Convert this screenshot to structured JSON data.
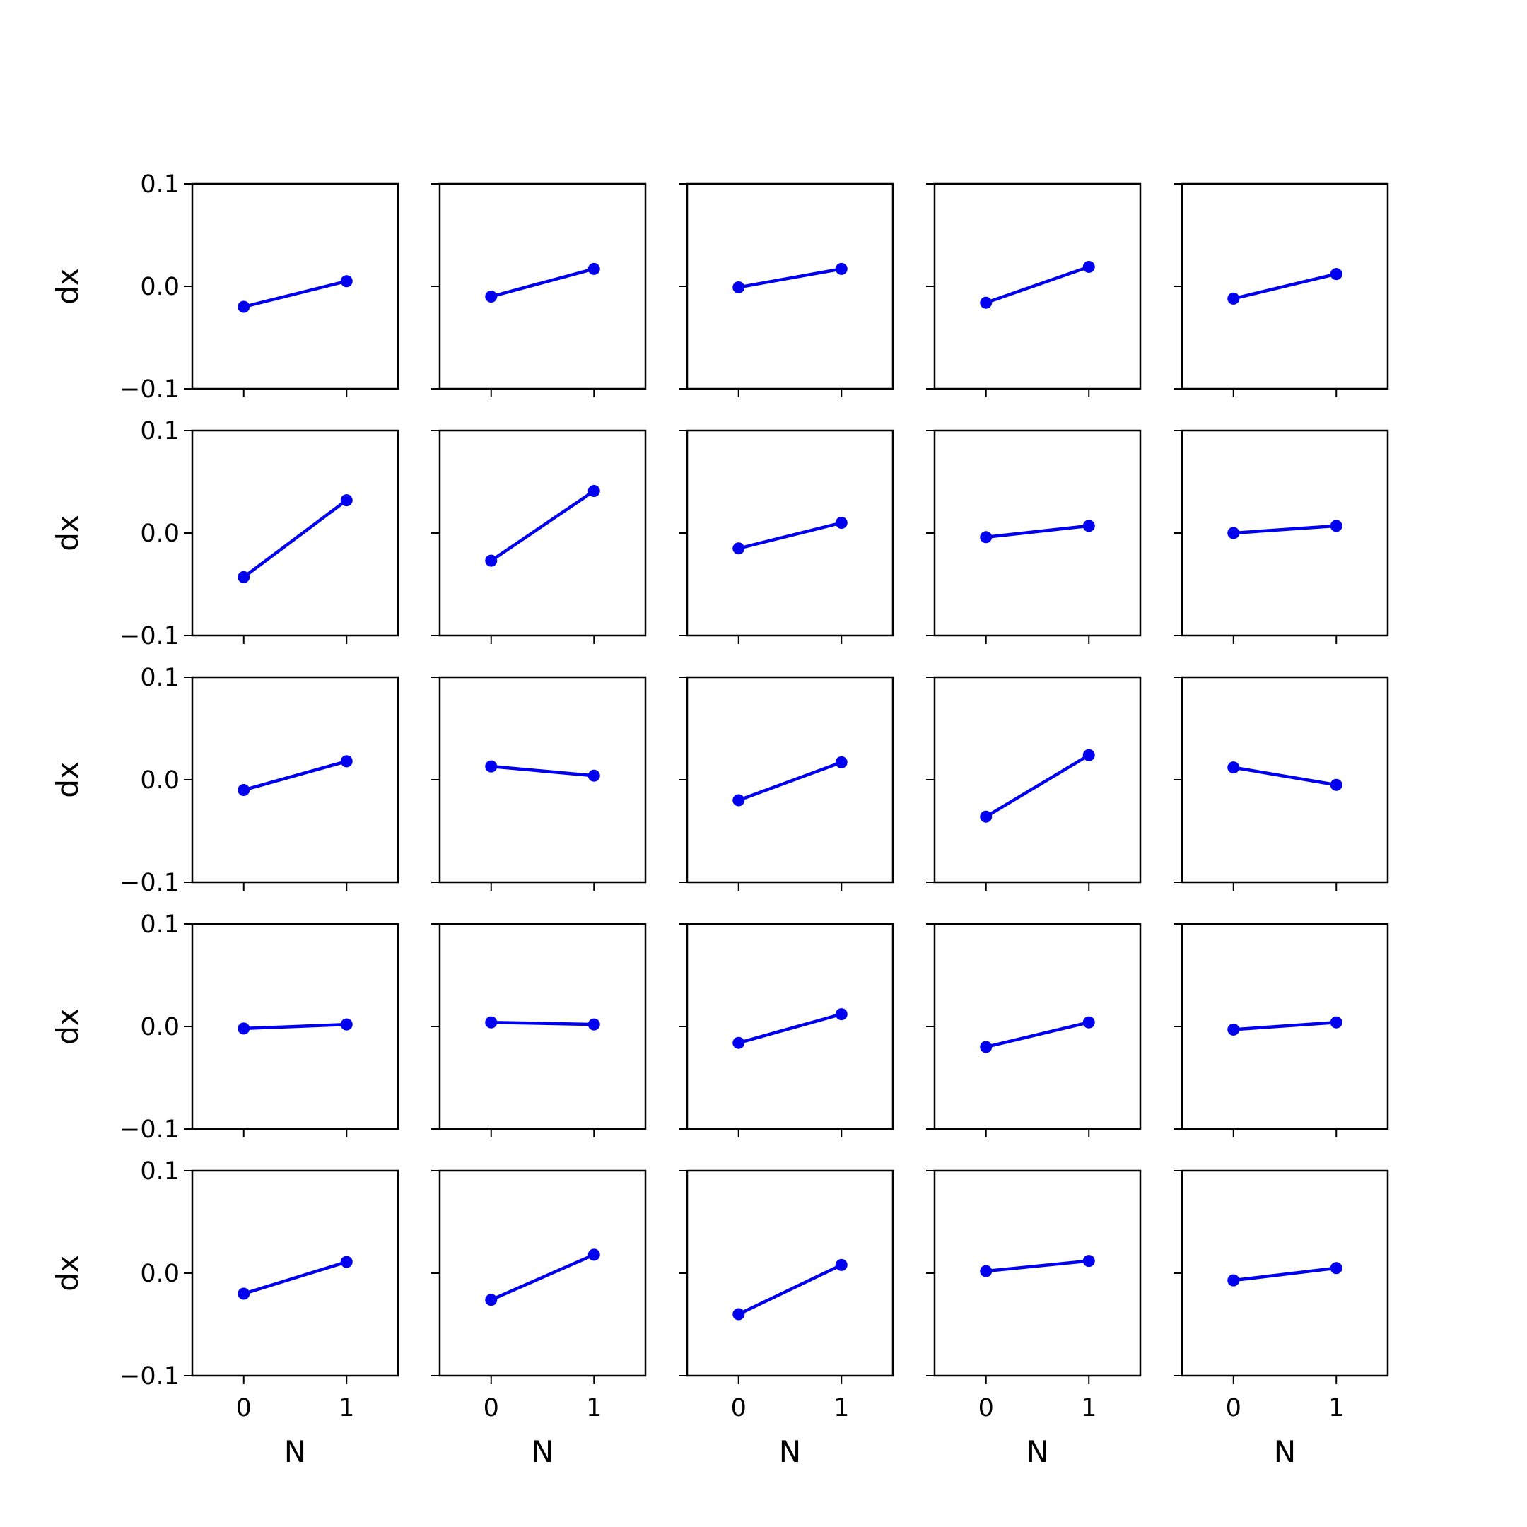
{
  "chart_data": {
    "type": "line",
    "layout": "5x5 grid of small multiples with shared axes",
    "xlabel": "N",
    "ylabel": "dx",
    "xticks": [
      "0",
      "1"
    ],
    "yticks": [
      "−0.1",
      "0.0",
      "0.1"
    ],
    "ytick_values": [
      -0.1,
      0.0,
      0.1
    ],
    "xtick_values": [
      0,
      1
    ],
    "xlim": [
      -0.5,
      1.5
    ],
    "ylim": [
      -0.1,
      0.1
    ],
    "grid": false,
    "legend": "none",
    "colors": {
      "series": "#0000ee",
      "axes": "#000000",
      "background": "#ffffff"
    },
    "panels": [
      [
        {
          "x": [
            0,
            1
          ],
          "y": [
            -0.02,
            0.005
          ]
        },
        {
          "x": [
            0,
            1
          ],
          "y": [
            -0.01,
            0.017
          ]
        },
        {
          "x": [
            0,
            1
          ],
          "y": [
            -0.001,
            0.017
          ]
        },
        {
          "x": [
            0,
            1
          ],
          "y": [
            -0.016,
            0.019
          ]
        },
        {
          "x": [
            0,
            1
          ],
          "y": [
            -0.012,
            0.012
          ]
        }
      ],
      [
        {
          "x": [
            0,
            1
          ],
          "y": [
            -0.043,
            0.032
          ]
        },
        {
          "x": [
            0,
            1
          ],
          "y": [
            -0.027,
            0.041
          ]
        },
        {
          "x": [
            0,
            1
          ],
          "y": [
            -0.015,
            0.01
          ]
        },
        {
          "x": [
            0,
            1
          ],
          "y": [
            -0.004,
            0.007
          ]
        },
        {
          "x": [
            0,
            1
          ],
          "y": [
            0.0,
            0.007
          ]
        }
      ],
      [
        {
          "x": [
            0,
            1
          ],
          "y": [
            -0.01,
            0.018
          ]
        },
        {
          "x": [
            0,
            1
          ],
          "y": [
            0.013,
            0.004
          ]
        },
        {
          "x": [
            0,
            1
          ],
          "y": [
            -0.02,
            0.017
          ]
        },
        {
          "x": [
            0,
            1
          ],
          "y": [
            -0.036,
            0.024
          ]
        },
        {
          "x": [
            0,
            1
          ],
          "y": [
            0.012,
            -0.005
          ]
        }
      ],
      [
        {
          "x": [
            0,
            1
          ],
          "y": [
            -0.002,
            0.002
          ]
        },
        {
          "x": [
            0,
            1
          ],
          "y": [
            0.004,
            0.002
          ]
        },
        {
          "x": [
            0,
            1
          ],
          "y": [
            -0.016,
            0.012
          ]
        },
        {
          "x": [
            0,
            1
          ],
          "y": [
            -0.02,
            0.004
          ]
        },
        {
          "x": [
            0,
            1
          ],
          "y": [
            -0.003,
            0.004
          ]
        }
      ],
      [
        {
          "x": [
            0,
            1
          ],
          "y": [
            -0.02,
            0.011
          ]
        },
        {
          "x": [
            0,
            1
          ],
          "y": [
            -0.026,
            0.018
          ]
        },
        {
          "x": [
            0,
            1
          ],
          "y": [
            -0.04,
            0.008
          ]
        },
        {
          "x": [
            0,
            1
          ],
          "y": [
            0.002,
            0.012
          ]
        },
        {
          "x": [
            0,
            1
          ],
          "y": [
            -0.007,
            0.005
          ]
        }
      ]
    ]
  }
}
